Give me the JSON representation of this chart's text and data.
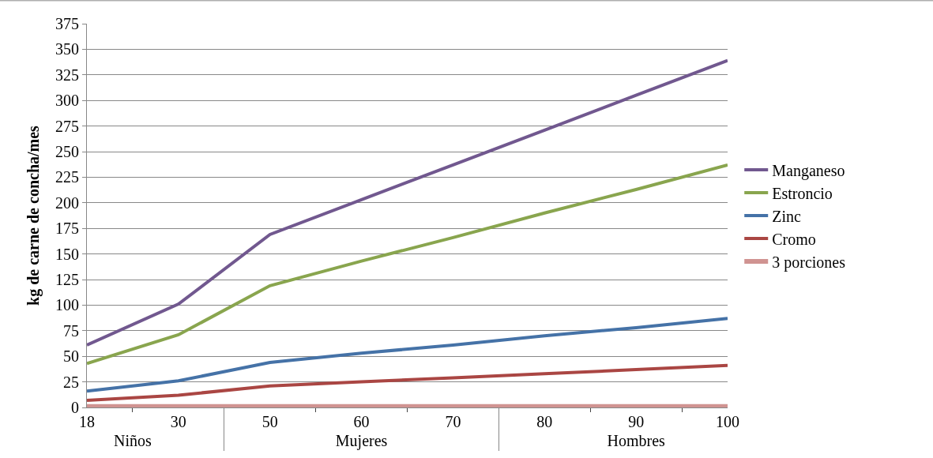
{
  "chart_data": {
    "type": "line",
    "ylabel": "kg de carne de concha/mes",
    "categories": [
      "18",
      "30",
      "50",
      "60",
      "70",
      "80",
      "90",
      "100"
    ],
    "annotations": [
      "Niños",
      "Mujeres",
      "Hombres"
    ],
    "series": [
      {
        "name": "Manganeso",
        "color": "#71588f",
        "values": [
          61,
          101,
          169,
          203,
          237,
          271,
          305,
          339
        ]
      },
      {
        "name": "Estroncio",
        "color": "#89a54e",
        "values": [
          43,
          71,
          119,
          143,
          166,
          190,
          213,
          237
        ]
      },
      {
        "name": "Zinc",
        "color": "#4572a7",
        "values": [
          16,
          26,
          44,
          53,
          61,
          70,
          78,
          87
        ]
      },
      {
        "name": "Cromo",
        "color": "#aa4643",
        "values": [
          7,
          12,
          21,
          25,
          29,
          33,
          37,
          41
        ]
      },
      {
        "name": "3 porciones",
        "color": "#d09391",
        "values": [
          1,
          1,
          1,
          1,
          1,
          1,
          1,
          1
        ]
      }
    ],
    "ylim": [
      0,
      375
    ],
    "yticks": [
      0,
      25,
      50,
      75,
      100,
      125,
      150,
      175,
      200,
      225,
      250,
      275,
      300,
      325,
      350,
      375
    ],
    "grid": "y",
    "legend": "right",
    "marker": "none",
    "line_style": "solid"
  }
}
